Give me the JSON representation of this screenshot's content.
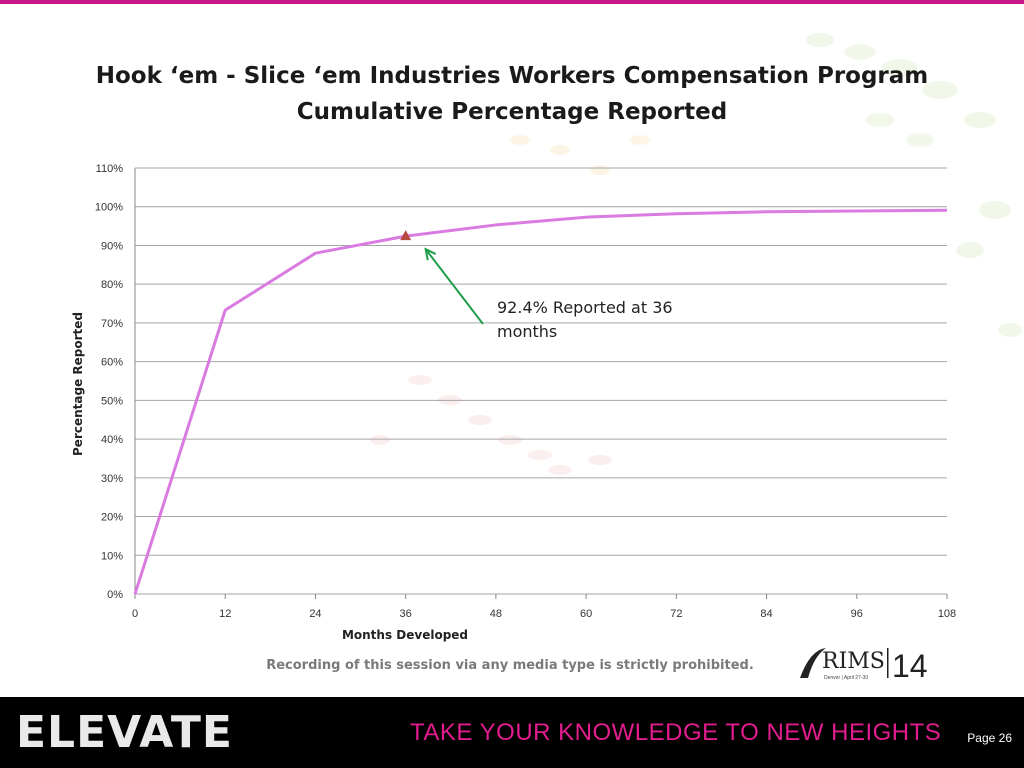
{
  "slide": {
    "title_line1": "Hook ‘em - Slice ‘em Industries Workers Compensation Program",
    "title_line2": "Cumulative Percentage Reported",
    "notice": "Recording of this session via any media type is strictly prohibited.",
    "logo_text": "RIMS",
    "logo_year": "14",
    "logo_small": "Denver | April 27-30",
    "brand": "ELEVATE",
    "tagline": "TAKE YOUR KNOWLEDGE TO NEW HEIGHTS",
    "page": "Page 26"
  },
  "colors": {
    "accent": "#c8178a",
    "line": "#d97be0",
    "marker": "#b5483f",
    "arrow": "#1f9e4a",
    "grid": "#a6a6a6"
  },
  "chart_data": {
    "type": "line",
    "xlabel": "Months Developed",
    "ylabel": "Percentage Reported",
    "xlim": [
      0,
      108
    ],
    "ylim": [
      0,
      110
    ],
    "x_ticks": [
      0,
      12,
      24,
      36,
      48,
      60,
      72,
      84,
      96,
      108
    ],
    "y_ticks": [
      "0%",
      "10%",
      "20%",
      "30%",
      "40%",
      "50%",
      "60%",
      "70%",
      "80%",
      "90%",
      "100%",
      "110%"
    ],
    "grid": true,
    "legend": "none",
    "series": [
      {
        "x": [
          0,
          12,
          24,
          36,
          48,
          60,
          72,
          84,
          96,
          108
        ],
        "values": [
          0,
          73.3,
          88.0,
          92.4,
          95.3,
          97.3,
          98.2,
          98.7,
          98.9,
          99.1
        ]
      }
    ],
    "highlight_point": {
      "x": 36,
      "y": 92.4
    },
    "annotation": {
      "line1": "92.4% Reported at 36",
      "line2": "months"
    }
  }
}
